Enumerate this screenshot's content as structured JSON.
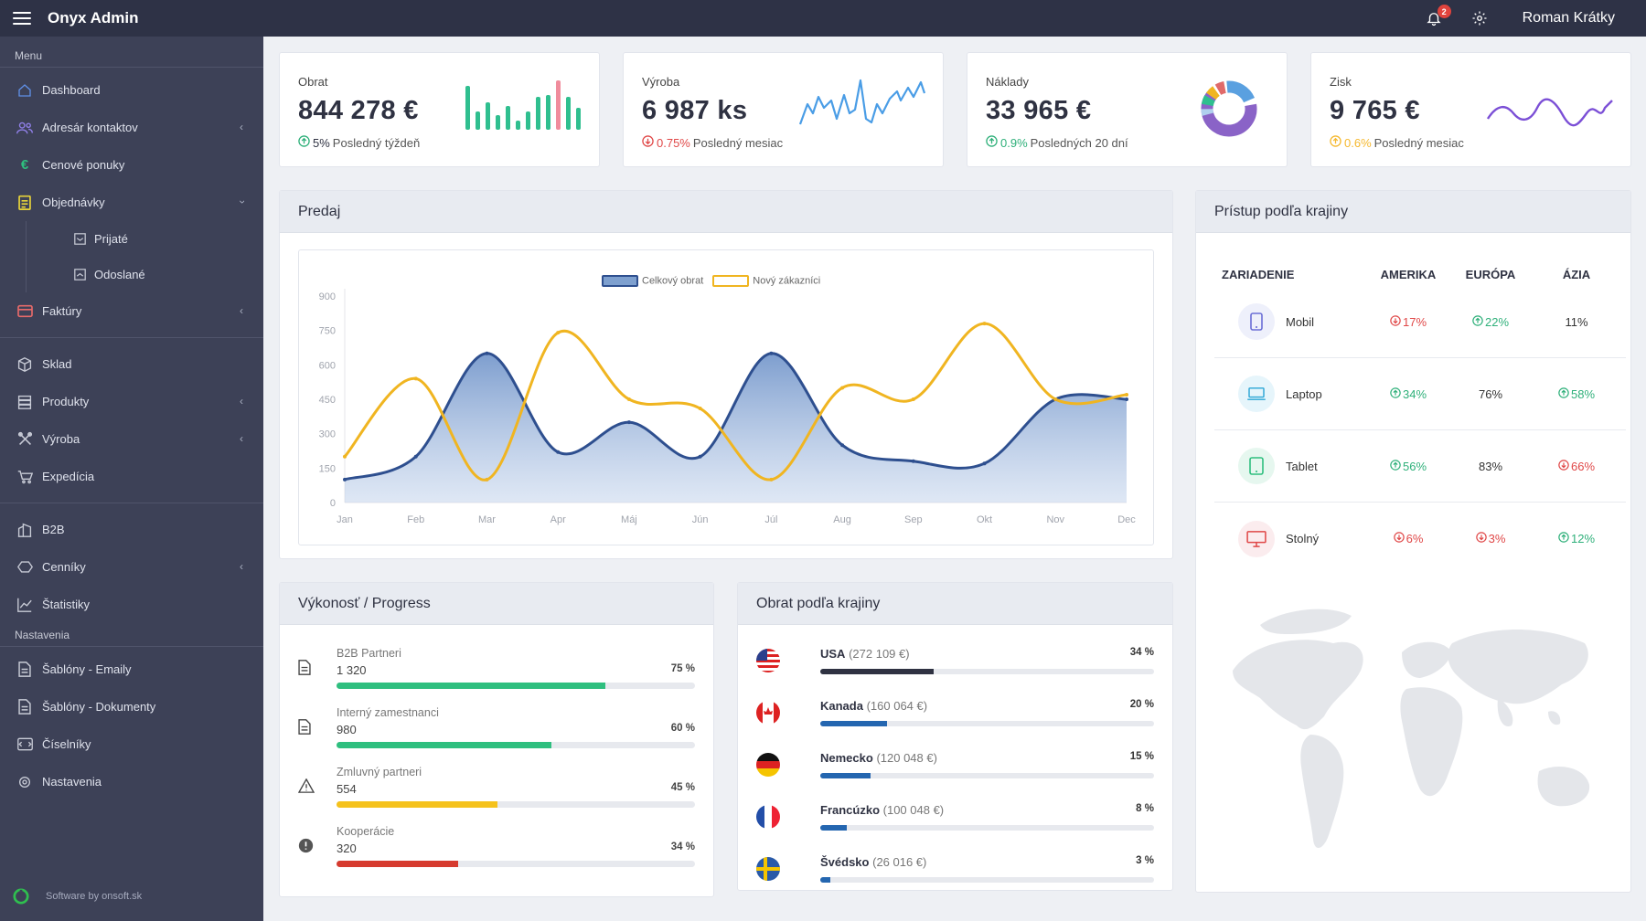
{
  "app": {
    "title": "Onyx Admin"
  },
  "topbar": {
    "notifications": "2",
    "user": "Roman Krátky"
  },
  "sidebar": {
    "menu_label": "Menu",
    "items": [
      {
        "label": "Dashboard"
      },
      {
        "label": "Adresár kontaktov"
      },
      {
        "label": "Cenové ponuky"
      },
      {
        "label": "Objednávky"
      },
      {
        "label": "Prijaté"
      },
      {
        "label": "Odoslané"
      },
      {
        "label": "Faktúry"
      },
      {
        "label": "Sklad"
      },
      {
        "label": "Produkty"
      },
      {
        "label": "Výroba"
      },
      {
        "label": "Expedícia"
      },
      {
        "label": "B2B"
      },
      {
        "label": "Cenníky"
      },
      {
        "label": "Štatistiky"
      }
    ],
    "settings_label": "Nastavenia",
    "settings_items": [
      {
        "label": "Šablóny - Emaily"
      },
      {
        "label": "Šablóny - Dokumenty"
      },
      {
        "label": "Číselníky"
      },
      {
        "label": "Nastavenia"
      }
    ],
    "footer": "Software by onsoft.sk"
  },
  "kpis": [
    {
      "label": "Obrat",
      "value": "844 278 €",
      "trend_value": "5%",
      "trend_text": "Posledný týždeň",
      "direction": "up",
      "color": "#2fb07a"
    },
    {
      "label": "Výroba",
      "value": "6 987 ks",
      "trend_value": "0.75%",
      "trend_text": "Posledný mesiac",
      "direction": "down",
      "color": "#e04848"
    },
    {
      "label": "Náklady",
      "value": "33 965 €",
      "trend_value": "0.9%",
      "trend_text": "Posledných 20 dní",
      "direction": "up",
      "color": "#2fb07a"
    },
    {
      "label": "Zisk",
      "value": "9 765 €",
      "trend_value": "0.6%",
      "trend_text": "Posledný mesiac",
      "direction": "up",
      "color": "#f5b82e"
    }
  ],
  "sales": {
    "title": "Predaj"
  },
  "chart_data": {
    "type": "area",
    "categories": [
      "Jan",
      "Feb",
      "Mar",
      "Apr",
      "Máj",
      "Jún",
      "Júl",
      "Aug",
      "Sep",
      "Okt",
      "Nov",
      "Dec"
    ],
    "series": [
      {
        "name": "Celkový obrat",
        "values": [
          100,
          200,
          650,
          220,
          350,
          200,
          650,
          250,
          180,
          170,
          450,
          450
        ],
        "color": "#2e4f8f"
      },
      {
        "name": "Nový zákazníci",
        "values": [
          200,
          540,
          100,
          740,
          450,
          410,
          100,
          500,
          450,
          780,
          450,
          470
        ],
        "color": "#f0b521"
      }
    ],
    "yticks": [
      "900",
      "750",
      "600",
      "450",
      "300",
      "150",
      "0"
    ],
    "ylim": [
      0,
      900
    ],
    "legend": "top-center",
    "grid": false
  },
  "progress": {
    "title": "Výkonosť / Progress",
    "rows": [
      {
        "title": "B2B Partneri",
        "value": "1 320",
        "pct": "75 %",
        "fill": 75,
        "color": "#2fbf7f"
      },
      {
        "title": "Interný zamestnanci",
        "value": "980",
        "pct": "60 %",
        "fill": 60,
        "color": "#2fbf7f"
      },
      {
        "title": "Zmluvný partneri",
        "value": "554",
        "pct": "45 %",
        "fill": 45,
        "color": "#f5c21c"
      },
      {
        "title": "Kooperácie",
        "value": "320",
        "pct": "34 %",
        "fill": 34,
        "color": "#d63b2f"
      }
    ]
  },
  "countries": {
    "title": "Obrat podľa krajiny",
    "rows": [
      {
        "name": "USA",
        "amount": "(272 109 €)",
        "pct": "34 %",
        "fill": 34,
        "color": "#2f3242"
      },
      {
        "name": "Kanada",
        "amount": "(160 064 €)",
        "pct": "20 %",
        "fill": 20,
        "color": "#2466b0"
      },
      {
        "name": "Nemecko",
        "amount": "(120 048 €)",
        "pct": "15 %",
        "fill": 15,
        "color": "#2466b0"
      },
      {
        "name": "Francúzko",
        "amount": "(100 048 €)",
        "pct": "8 %",
        "fill": 8,
        "color": "#2466b0"
      },
      {
        "name": "Švédsko",
        "amount": "(26 016 €)",
        "pct": "3 %",
        "fill": 3,
        "color": "#2466b0"
      }
    ]
  },
  "access": {
    "title": "Prístup podľa krajiny",
    "headers": [
      "ZARIADENIE",
      "AMERIKA",
      "EURÓPA",
      "ÁZIA"
    ],
    "rows": [
      {
        "device": "Mobil",
        "icon": "mobile-icon",
        "a": "17%",
        "ad": "down",
        "e": "22%",
        "ed": "up",
        "z": "11%",
        "zd": "none"
      },
      {
        "device": "Laptop",
        "icon": "laptop-icon",
        "a": "34%",
        "ad": "up",
        "e": "76%",
        "ed": "none",
        "z": "58%",
        "zd": "up"
      },
      {
        "device": "Tablet",
        "icon": "tablet-icon",
        "a": "56%",
        "ad": "up",
        "e": "83%",
        "ed": "none",
        "z": "66%",
        "zd": "down"
      },
      {
        "device": "Stolný",
        "icon": "desktop-icon",
        "a": "6%",
        "ad": "down",
        "e": "3%",
        "ed": "down",
        "z": "12%",
        "zd": "up"
      }
    ]
  }
}
